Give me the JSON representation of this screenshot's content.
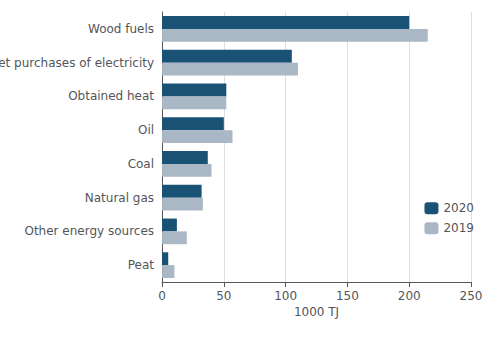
{
  "chart_data": {
    "type": "bar",
    "orientation": "horizontal",
    "categories": [
      "Wood fuels",
      "Net purchases of electricity",
      "Obtained heat",
      "Oil",
      "Coal",
      "Natural gas",
      "Other energy sources",
      "Peat"
    ],
    "series": [
      {
        "name": "2020",
        "color": "#1a5276",
        "values": [
          200,
          105,
          52,
          50,
          37,
          32,
          12,
          5
        ]
      },
      {
        "name": "2019",
        "color": "#aab7c4",
        "values": [
          215,
          110,
          52,
          57,
          40,
          33,
          20,
          10
        ]
      }
    ],
    "xlabel": "1000 TJ",
    "xlim": [
      0,
      250
    ],
    "xticks": [
      0,
      50,
      100,
      150,
      200,
      250
    ],
    "grid": true,
    "legend": "right"
  }
}
